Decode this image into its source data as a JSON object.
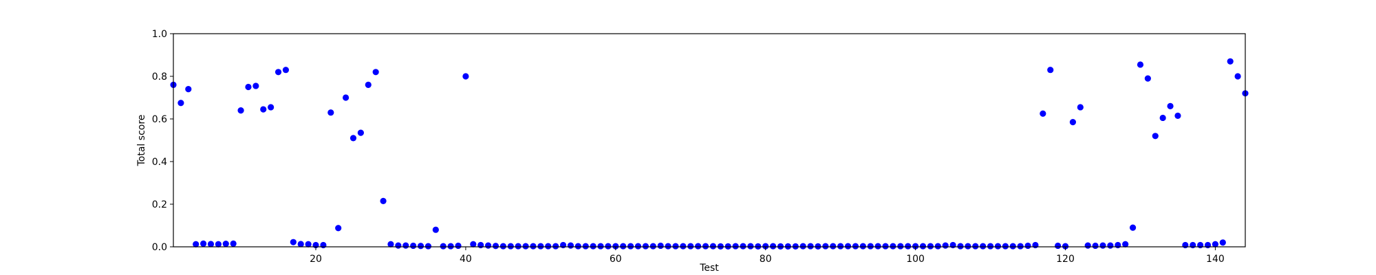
{
  "chart_data": {
    "type": "scatter",
    "title": "",
    "xlabel": "Test",
    "ylabel": "Total score",
    "xlim": [
      1,
      144
    ],
    "ylim": [
      0.0,
      1.0
    ],
    "xticks": [
      20,
      40,
      60,
      80,
      100,
      120,
      140
    ],
    "yticks": [
      0.0,
      0.2,
      0.4,
      0.6,
      0.8,
      1.0
    ],
    "xtick_labels": [
      "20",
      "40",
      "60",
      "80",
      "100",
      "120",
      "140"
    ],
    "ytick_labels": [
      "0.0",
      "0.2",
      "0.4",
      "0.6",
      "0.8",
      "1.0"
    ],
    "grid": false,
    "marker_color": "#0000ff",
    "series": [
      {
        "x": [
          1,
          2,
          3,
          4,
          5,
          6,
          7,
          8,
          9,
          10,
          11,
          12,
          13,
          14,
          15,
          16,
          17,
          18,
          19,
          20,
          21,
          22,
          23,
          24,
          25,
          26,
          27,
          28,
          29,
          30,
          31,
          32,
          33,
          34,
          35,
          36,
          37,
          38,
          39,
          40,
          41,
          42,
          43,
          44,
          45,
          46,
          47,
          48,
          49,
          50,
          51,
          52,
          53,
          54,
          55,
          56,
          57,
          58,
          59,
          60,
          61,
          62,
          63,
          64,
          65,
          66,
          67,
          68,
          69,
          70,
          71,
          72,
          73,
          74,
          75,
          76,
          77,
          78,
          79,
          80,
          81,
          82,
          83,
          84,
          85,
          86,
          87,
          88,
          89,
          90,
          91,
          92,
          93,
          94,
          95,
          96,
          97,
          98,
          99,
          100,
          101,
          102,
          103,
          104,
          105,
          106,
          107,
          108,
          109,
          110,
          111,
          112,
          113,
          114,
          115,
          116,
          117,
          118,
          119,
          120,
          121,
          122,
          123,
          124,
          125,
          126,
          127,
          128,
          129,
          130,
          131,
          132,
          133,
          134,
          135,
          136,
          137,
          138,
          139,
          140,
          141,
          142,
          143,
          144
        ],
        "y": [
          0.76,
          0.675,
          0.74,
          0.012,
          0.015,
          0.013,
          0.012,
          0.014,
          0.015,
          0.64,
          0.75,
          0.755,
          0.645,
          0.655,
          0.82,
          0.83,
          0.022,
          0.013,
          0.012,
          0.008,
          0.008,
          0.63,
          0.088,
          0.7,
          0.51,
          0.535,
          0.76,
          0.82,
          0.215,
          0.012,
          0.006,
          0.006,
          0.005,
          0.004,
          0.003,
          0.08,
          0.003,
          0.003,
          0.005,
          0.8,
          0.012,
          0.008,
          0.006,
          0.004,
          0.003,
          0.003,
          0.003,
          0.003,
          0.003,
          0.003,
          0.003,
          0.003,
          0.008,
          0.006,
          0.003,
          0.003,
          0.003,
          0.003,
          0.003,
          0.003,
          0.003,
          0.003,
          0.003,
          0.003,
          0.003,
          0.005,
          0.003,
          0.003,
          0.003,
          0.003,
          0.003,
          0.003,
          0.003,
          0.002,
          0.002,
          0.003,
          0.003,
          0.003,
          0.002,
          0.003,
          0.003,
          0.002,
          0.002,
          0.002,
          0.003,
          0.003,
          0.002,
          0.003,
          0.003,
          0.003,
          0.003,
          0.003,
          0.003,
          0.003,
          0.003,
          0.003,
          0.003,
          0.003,
          0.003,
          0.003,
          0.003,
          0.003,
          0.003,
          0.006,
          0.008,
          0.003,
          0.003,
          0.003,
          0.003,
          0.003,
          0.003,
          0.003,
          0.003,
          0.003,
          0.005,
          0.008,
          0.625,
          0.83,
          0.005,
          0.003,
          0.585,
          0.655,
          0.006,
          0.005,
          0.006,
          0.006,
          0.008,
          0.012,
          0.09,
          0.855,
          0.79,
          0.52,
          0.605,
          0.66,
          0.615,
          0.008,
          0.008,
          0.008,
          0.008,
          0.012,
          0.02,
          0.87,
          0.8,
          0.72
        ]
      }
    ]
  }
}
